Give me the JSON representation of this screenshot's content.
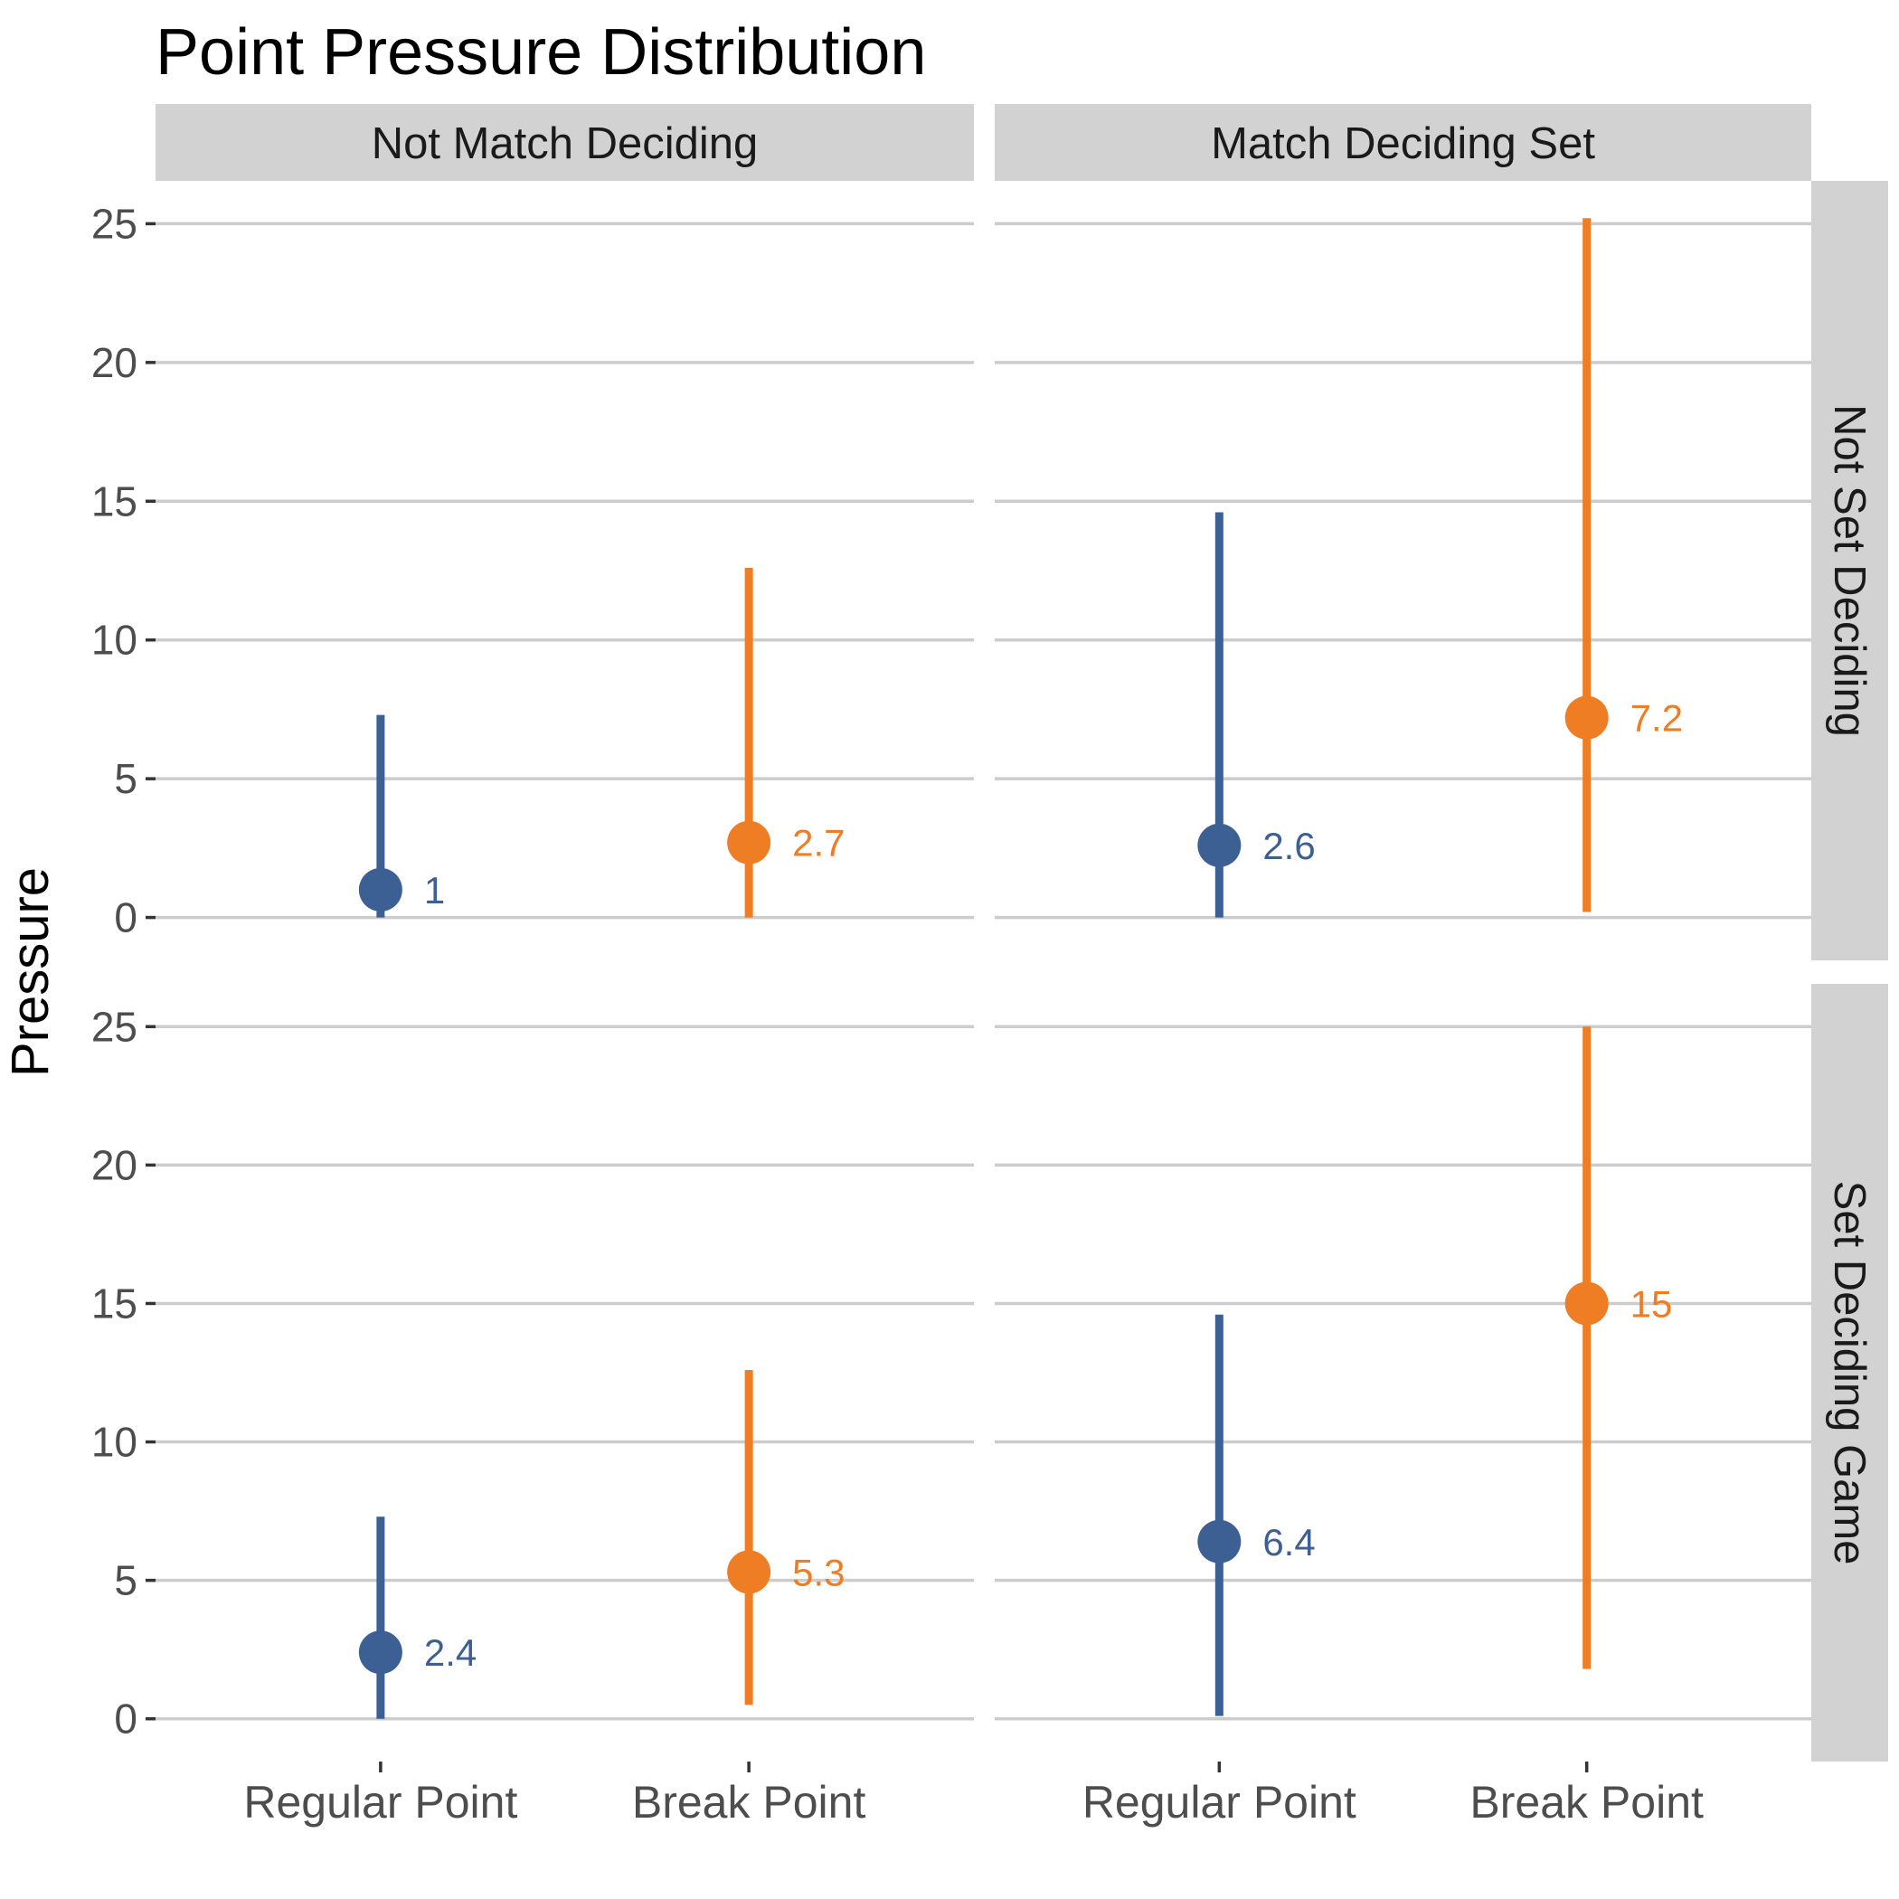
{
  "chart_data": {
    "type": "pointrange",
    "title": "Point Pressure Distribution",
    "ylabel": "Pressure",
    "xlabel": "",
    "ylim": [
      0,
      25
    ],
    "yticks": [
      0,
      5,
      10,
      15,
      20,
      25
    ],
    "grid": true,
    "legend": "none",
    "categories": [
      "Regular Point",
      "Break Point"
    ],
    "category_colors": [
      "#3d6094",
      "#ee7d24"
    ],
    "facet_columns": [
      "Not Match Deciding",
      "Match Deciding Set"
    ],
    "facet_rows": [
      "Not Set Deciding",
      "Set Deciding Game"
    ],
    "panels": [
      {
        "column": "Not Match Deciding",
        "row": "Not Set Deciding",
        "points": [
          {
            "category": "Regular Point",
            "value": 1,
            "label": "1",
            "low": 0,
            "high": 7.3
          },
          {
            "category": "Break Point",
            "value": 2.7,
            "label": "2.7",
            "low": 0,
            "high": 12.6
          }
        ]
      },
      {
        "column": "Match Deciding Set",
        "row": "Not Set Deciding",
        "points": [
          {
            "category": "Regular Point",
            "value": 2.6,
            "label": "2.6",
            "low": 0,
            "high": 14.6
          },
          {
            "category": "Break Point",
            "value": 7.2,
            "label": "7.2",
            "low": 0.2,
            "high": 25.2
          }
        ]
      },
      {
        "column": "Not Match Deciding",
        "row": "Set Deciding Game",
        "points": [
          {
            "category": "Regular Point",
            "value": 2.4,
            "label": "2.4",
            "low": 0,
            "high": 7.3
          },
          {
            "category": "Break Point",
            "value": 5.3,
            "label": "5.3",
            "low": 0.5,
            "high": 12.6
          }
        ]
      },
      {
        "column": "Match Deciding Set",
        "row": "Set Deciding Game",
        "points": [
          {
            "category": "Regular Point",
            "value": 6.4,
            "label": "6.4",
            "low": 0.1,
            "high": 14.6
          },
          {
            "category": "Break Point",
            "value": 15,
            "label": "15",
            "low": 1.8,
            "high": 25
          }
        ]
      }
    ]
  }
}
